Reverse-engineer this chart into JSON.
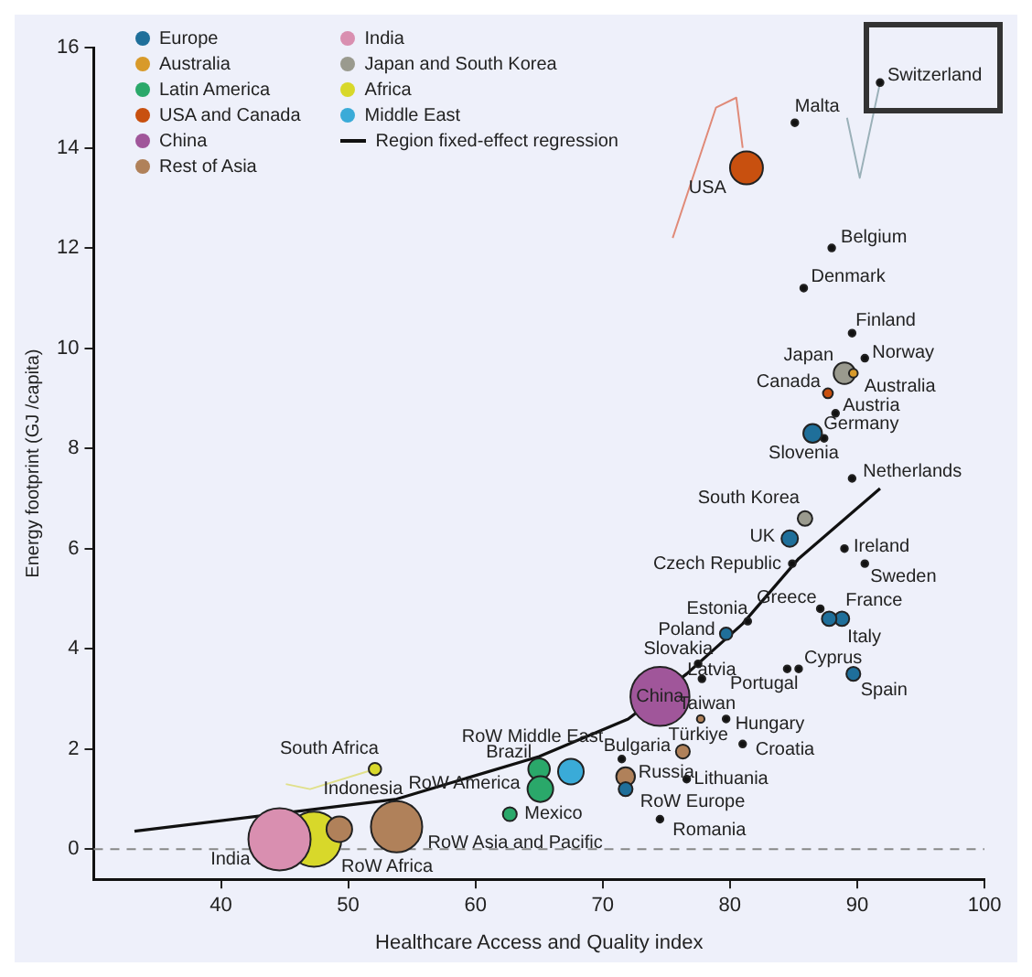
{
  "chart_data": {
    "type": "bubble",
    "xlabel": "Healthcare Access and Quality index",
    "ylabel": "Energy footprint (GJ /capita)",
    "xlim": [
      30,
      100
    ],
    "ylim": [
      -0.6,
      16
    ],
    "xticks": [
      40,
      50,
      60,
      70,
      80,
      90,
      100
    ],
    "yticks": [
      0,
      2,
      4,
      6,
      8,
      10,
      12,
      14,
      16
    ],
    "grid": false,
    "legend": "top left",
    "series": [
      {
        "name": "Europe",
        "color": "#1f6f9a",
        "x": [
          86.5,
          84.7,
          88.8,
          87.8,
          89.7,
          79.7,
          71.8
        ],
        "values": [
          8.3,
          6.2,
          4.6,
          4.6,
          3.5,
          4.3,
          1.2
        ],
        "sizes": [
          0.09,
          0.07,
          0.055,
          0.055,
          0.05,
          0.04,
          0.05
        ]
      },
      {
        "name": "Australia",
        "color": "#d89a2a",
        "x": [
          89.7
        ],
        "values": [
          9.5
        ],
        "sizes": [
          0.02
        ]
      },
      {
        "name": "Latin America",
        "color": "#2aa86a",
        "x": [
          65.0,
          65.1,
          62.7
        ],
        "values": [
          1.6,
          1.2,
          0.7
        ],
        "sizes": [
          0.12,
          0.17,
          0.05
        ]
      },
      {
        "name": "USA and Canada",
        "color": "#c8500f",
        "x": [
          81.3,
          87.7
        ],
        "values": [
          13.6,
          9.1
        ],
        "sizes": [
          0.28,
          0.025
        ]
      },
      {
        "name": "China",
        "color": "#a0569a",
        "x": [
          74.5
        ],
        "values": [
          3.05
        ],
        "sizes": [
          0.9
        ]
      },
      {
        "name": "Rest of Asia",
        "color": "#b0815a",
        "x": [
          49.3,
          53.8,
          71.8,
          76.3,
          77.7
        ],
        "values": [
          0.4,
          0.45,
          1.45,
          1.95,
          2.6
        ],
        "sizes": [
          0.17,
          0.68,
          0.09,
          0.05,
          0.015
        ]
      },
      {
        "name": "India",
        "color": "#d98fb0",
        "x": [
          44.6
        ],
        "values": [
          0.2
        ],
        "sizes": [
          1
        ]
      },
      {
        "name": "Japan and South Korea",
        "color": "#9a9a8e",
        "x": [
          89.0,
          85.9
        ],
        "values": [
          9.5,
          6.6
        ],
        "sizes": [
          0.12,
          0.055
        ]
      },
      {
        "name": "Africa",
        "color": "#d8d82a",
        "x": [
          47.3,
          52.1
        ],
        "values": [
          0.2,
          1.6
        ],
        "sizes": [
          0.78,
          0.04
        ]
      },
      {
        "name": "Middle East",
        "color": "#3aabd8",
        "x": [
          67.5
        ],
        "values": [
          1.55
        ],
        "sizes": [
          0.17
        ]
      },
      {
        "name": "Region fixed-effect regression",
        "type": "line",
        "color": "#111111",
        "x": [
          33.2,
          53.8,
          65,
          72,
          76.6,
          81,
          85.4,
          91.8
        ],
        "values": [
          0.36,
          1.0,
          1.85,
          2.6,
          3.5,
          4.5,
          5.8,
          7.2
        ]
      },
      {
        "color": "#111111",
        "x": [
          91.8,
          85.1,
          88.0,
          85.8,
          89.6,
          90.6,
          88.3,
          87.4,
          89.6,
          84.9,
          89.0,
          90.6,
          87.1,
          81.4,
          77.5,
          77.8,
          85.4,
          84.5,
          79.7,
          81.0,
          71.5,
          76.6,
          74.5
        ],
        "values": [
          15.3,
          14.5,
          12.0,
          11.2,
          10.3,
          9.8,
          8.7,
          8.2,
          7.4,
          5.7,
          6.0,
          5.7,
          4.8,
          4.55,
          3.7,
          3.4,
          3.6,
          3.6,
          2.6,
          2.1,
          1.8,
          1.4,
          0.6
        ],
        "sizes": [
          0.012,
          0.012,
          0.012,
          0.012,
          0.012,
          0.012,
          0.012,
          0.012,
          0.012,
          0.012,
          0.012,
          0.012,
          0.012,
          0.012,
          0.012,
          0.012,
          0.012,
          0.012,
          0.012,
          0.012,
          0.012,
          0.012,
          0.012
        ]
      },
      {
        "type": "line",
        "color": "#e08a78",
        "x": [
          75.5,
          78.9,
          80.5,
          81.0
        ],
        "values": [
          12.2,
          14.8,
          15.0,
          14.0
        ]
      },
      {
        "type": "line",
        "color": "#9ab0b8",
        "x": [
          89.2,
          90.2,
          91.8
        ],
        "values": [
          14.6,
          13.4,
          15.3
        ]
      },
      {
        "type": "line",
        "color": "#e0e08a",
        "x": [
          45.1,
          47.0,
          52.1
        ],
        "values": [
          1.3,
          1.2,
          1.6
        ]
      }
    ],
    "ref_lines": [
      {
        "axis": "y",
        "value": 0,
        "color": "#888888",
        "line_style": "dashed"
      }
    ],
    "annotations": [
      {
        "text": "Switzerland",
        "x": 91.8,
        "y": 15.3
      },
      {
        "text": "Malta",
        "x": 85.1,
        "y": 14.5
      },
      {
        "text": "USA",
        "x": 81.3,
        "y": 13.6
      },
      {
        "text": "Belgium",
        "x": 88.0,
        "y": 12.0
      },
      {
        "text": "Denmark",
        "x": 85.8,
        "y": 11.2
      },
      {
        "text": "Finland",
        "x": 89.6,
        "y": 10.3
      },
      {
        "text": "Japan",
        "x": 89.0,
        "y": 9.5
      },
      {
        "text": "Norway",
        "x": 90.6,
        "y": 9.8
      },
      {
        "text": "Australia",
        "x": 89.7,
        "y": 9.5
      },
      {
        "text": "Canada",
        "x": 87.7,
        "y": 9.1
      },
      {
        "text": "Austria",
        "x": 88.3,
        "y": 8.7
      },
      {
        "text": "Germany",
        "x": 86.5,
        "y": 8.3
      },
      {
        "text": "Slovenia",
        "x": 87.4,
        "y": 8.2
      },
      {
        "text": "Netherlands",
        "x": 89.6,
        "y": 7.4
      },
      {
        "text": "South Korea",
        "x": 85.9,
        "y": 6.6
      },
      {
        "text": "UK",
        "x": 84.7,
        "y": 6.2
      },
      {
        "text": "Czech Republic",
        "x": 84.9,
        "y": 5.7
      },
      {
        "text": "Ireland",
        "x": 89.0,
        "y": 6.0
      },
      {
        "text": "Sweden",
        "x": 90.6,
        "y": 5.7
      },
      {
        "text": "Greece",
        "x": 87.1,
        "y": 4.8
      },
      {
        "text": "France",
        "x": 88.8,
        "y": 4.6
      },
      {
        "text": "Italy",
        "x": 87.8,
        "y": 4.6
      },
      {
        "text": "Estonia",
        "x": 81.4,
        "y": 4.55
      },
      {
        "text": "Poland",
        "x": 79.7,
        "y": 4.3
      },
      {
        "text": "Slovakia",
        "x": 77.5,
        "y": 3.7
      },
      {
        "text": "Latvia",
        "x": 77.8,
        "y": 3.4
      },
      {
        "text": "Cyprus",
        "x": 85.4,
        "y": 3.6
      },
      {
        "text": "Portugal",
        "x": 84.5,
        "y": 3.6
      },
      {
        "text": "Spain",
        "x": 89.7,
        "y": 3.5
      },
      {
        "text": "China",
        "x": 74.5,
        "y": 3.05
      },
      {
        "text": "Taiwan",
        "x": 77.7,
        "y": 2.6
      },
      {
        "text": "Hungary",
        "x": 79.7,
        "y": 2.6
      },
      {
        "text": "Türkiye",
        "x": 76.3,
        "y": 1.95
      },
      {
        "text": "Croatia",
        "x": 81.0,
        "y": 2.1
      },
      {
        "text": "Bulgaria",
        "x": 71.5,
        "y": 1.8
      },
      {
        "text": "Russia",
        "x": 71.8,
        "y": 1.45
      },
      {
        "text": "Lithuania",
        "x": 76.6,
        "y": 1.4
      },
      {
        "text": "RoW Europe",
        "x": 71.8,
        "y": 1.2
      },
      {
        "text": "Romania",
        "x": 74.5,
        "y": 0.6
      },
      {
        "text": "RoW Middle East",
        "x": 67.5,
        "y": 1.55
      },
      {
        "text": "Brazil",
        "x": 65.0,
        "y": 1.6
      },
      {
        "text": "RoW America",
        "x": 65.1,
        "y": 1.2
      },
      {
        "text": "Mexico",
        "x": 62.7,
        "y": 0.7
      },
      {
        "text": "RoW Asia and Pacific",
        "x": 53.8,
        "y": 0.45
      },
      {
        "text": "South Africa",
        "x": 52.1,
        "y": 1.6
      },
      {
        "text": "Indonesia",
        "x": 49.3,
        "y": 0.4
      },
      {
        "text": "RoW Africa",
        "x": 47.3,
        "y": 0.2
      },
      {
        "text": "India",
        "x": 44.6,
        "y": 0.2
      }
    ]
  }
}
